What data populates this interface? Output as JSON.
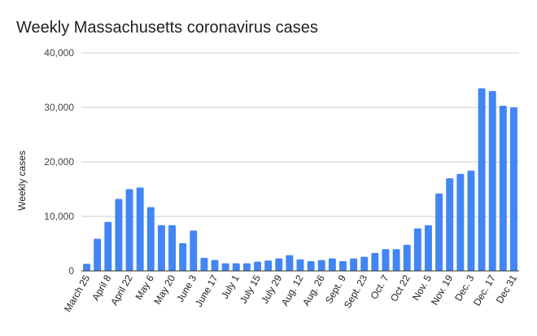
{
  "chart_data": {
    "type": "bar",
    "title": "Weekly Massachusetts coronavirus cases",
    "xlabel": "",
    "ylabel": "Weekly cases",
    "ylim": [
      0,
      40000
    ],
    "yticks": [
      "0",
      "10,000",
      "20,000",
      "30,000",
      "40,000"
    ],
    "ytick_values": [
      0,
      10000,
      20000,
      30000,
      40000
    ],
    "grid": true,
    "legend": "none",
    "bar_color": "#4285f4",
    "x_tick_labels": [
      {
        "label": "March 25",
        "index": 0
      },
      {
        "label": "April 8",
        "index": 2
      },
      {
        "label": "April 22",
        "index": 4
      },
      {
        "label": "May 6",
        "index": 6
      },
      {
        "label": "May 20",
        "index": 8
      },
      {
        "label": "June 3",
        "index": 10
      },
      {
        "label": "June 17",
        "index": 12
      },
      {
        "label": "July 1",
        "index": 14
      },
      {
        "label": "July 15",
        "index": 16
      },
      {
        "label": "July 29",
        "index": 18
      },
      {
        "label": "Aug. 12",
        "index": 20
      },
      {
        "label": "Aug. 26",
        "index": 22
      },
      {
        "label": "Sept. 9",
        "index": 24
      },
      {
        "label": "Sept. 23",
        "index": 26
      },
      {
        "label": "Oct. 7",
        "index": 28
      },
      {
        "label": "Oct 22",
        "index": 30
      },
      {
        "label": "Nov. 5",
        "index": 32
      },
      {
        "label": "Nov. 19",
        "index": 34
      },
      {
        "label": "Dec. 3",
        "index": 36
      },
      {
        "label": "Dec. 17",
        "index": 38
      },
      {
        "label": "Dec 31",
        "index": 40
      }
    ],
    "values": [
      1300,
      5900,
      9000,
      13200,
      15000,
      15300,
      11700,
      8400,
      8400,
      5100,
      7400,
      2400,
      2000,
      1400,
      1400,
      1400,
      1700,
      1900,
      2300,
      2900,
      2100,
      1800,
      2000,
      2300,
      1800,
      2300,
      2600,
      3300,
      4000,
      4000,
      4800,
      7800,
      8400,
      14200,
      17000,
      17800,
      18400,
      33500,
      33000,
      30300,
      30000
    ]
  }
}
